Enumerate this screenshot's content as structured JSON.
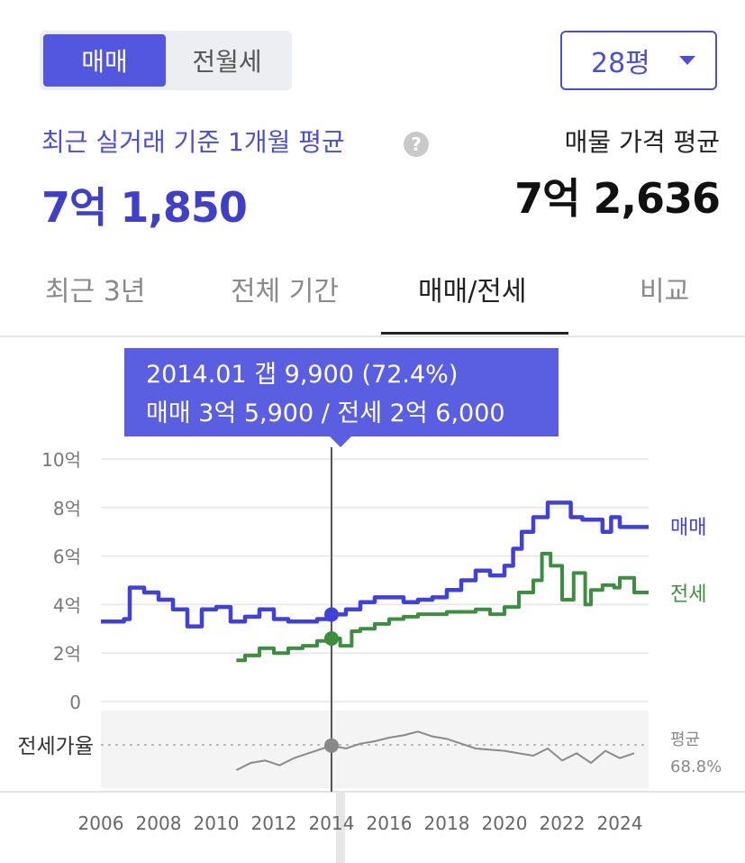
{
  "toggle": {
    "sale_label": "매매",
    "rent_label": "전월세"
  },
  "area_select": {
    "value": "28평"
  },
  "summary": {
    "recent_label": "최근 실거래 기준 1개월 평균",
    "recent_value": "7억 1,850",
    "listing_label": "매물 가격 평균",
    "listing_value": "7억 2,636"
  },
  "tabs": [
    {
      "label": "최근 3년"
    },
    {
      "label": "전체 기간"
    },
    {
      "label": "매매/전세"
    },
    {
      "label": "비교"
    }
  ],
  "tooltip": {
    "line1": "2014.01  갭 9,900 (72.4%)",
    "line2": "매매 3억 5,900 / 전세 2억 6,000"
  },
  "colors": {
    "accent": "#5357e0",
    "sale": "#4040dc",
    "jeonse": "#3e8e41",
    "ratio": "#888888"
  },
  "chart_data": {
    "type": "line",
    "y_ticks": [
      "10억",
      "8억",
      "6억",
      "4억",
      "2억",
      "0"
    ],
    "ylim": [
      0,
      10
    ],
    "x_ticks": [
      "2006",
      "2008",
      "2010",
      "2012",
      "2014",
      "2016",
      "2018",
      "2020",
      "2022",
      "2024"
    ],
    "xlim": [
      2006,
      2025
    ],
    "series": [
      {
        "name": "매매",
        "x": [
          2006.0,
          2006.8,
          2007.0,
          2007.5,
          2008.0,
          2008.5,
          2009.0,
          2009.5,
          2010.0,
          2010.5,
          2011.0,
          2011.5,
          2012.0,
          2012.5,
          2013.0,
          2013.5,
          2014.0,
          2014.5,
          2015.0,
          2015.5,
          2016.0,
          2016.5,
          2017.0,
          2017.5,
          2018.0,
          2018.5,
          2019.0,
          2019.5,
          2020.0,
          2020.3,
          2020.6,
          2021.0,
          2021.5,
          2022.0,
          2022.3,
          2022.7,
          2023.0,
          2023.4,
          2023.7,
          2024.0,
          2024.5
        ],
        "values": [
          3.3,
          3.4,
          4.7,
          4.5,
          4.2,
          3.8,
          3.1,
          3.8,
          3.9,
          3.3,
          3.5,
          3.8,
          3.4,
          3.3,
          3.3,
          3.4,
          3.59,
          3.8,
          4.1,
          4.3,
          4.3,
          4.1,
          4.2,
          4.3,
          4.6,
          5.0,
          5.4,
          5.2,
          5.6,
          6.3,
          7.0,
          7.6,
          8.2,
          8.2,
          7.6,
          7.5,
          7.5,
          7.0,
          7.6,
          7.2,
          7.2
        ]
      },
      {
        "name": "전세",
        "x": [
          2010.7,
          2011.0,
          2011.5,
          2012.0,
          2012.5,
          2013.0,
          2013.5,
          2014.0,
          2014.3,
          2014.7,
          2015.0,
          2015.5,
          2016.0,
          2016.5,
          2017.0,
          2017.5,
          2018.0,
          2018.5,
          2019.0,
          2019.5,
          2020.0,
          2020.5,
          2021.0,
          2021.3,
          2021.6,
          2022.0,
          2022.4,
          2022.8,
          2023.0,
          2023.4,
          2023.8,
          2024.0,
          2024.5
        ],
        "values": [
          1.7,
          1.9,
          2.2,
          2.0,
          2.2,
          2.3,
          2.5,
          2.6,
          2.3,
          2.9,
          3.0,
          3.2,
          3.4,
          3.5,
          3.6,
          3.6,
          3.7,
          3.7,
          3.8,
          3.6,
          3.9,
          4.5,
          5.0,
          6.1,
          5.6,
          4.2,
          5.3,
          4.0,
          4.6,
          4.8,
          4.7,
          5.1,
          4.5
        ]
      }
    ],
    "ratio": {
      "label": "전세가율",
      "avg_label": "평균",
      "avg_value": "68.8%",
      "x": [
        2010.7,
        2011.2,
        2011.7,
        2012.2,
        2012.7,
        2013.2,
        2013.7,
        2014.0,
        2014.5,
        2015.0,
        2015.5,
        2016.0,
        2016.5,
        2017.0,
        2017.5,
        2018.0,
        2018.5,
        2019.0,
        2019.5,
        2020.0,
        2020.5,
        2021.0,
        2021.5,
        2022.0,
        2022.5,
        2023.0,
        2023.5,
        2024.0,
        2024.5
      ],
      "values": [
        52,
        58,
        60,
        56,
        62,
        66,
        70,
        72.4,
        70,
        74,
        76,
        79,
        81,
        84,
        80,
        78,
        74,
        70,
        69,
        68,
        66,
        64,
        70,
        60,
        66,
        58,
        68,
        62,
        66
      ],
      "ylim": [
        40,
        100
      ],
      "avg": 68.8
    },
    "highlight": {
      "x": 2014.0,
      "sale": 3.59,
      "jeonse": 2.6,
      "ratio": 72.4
    }
  }
}
